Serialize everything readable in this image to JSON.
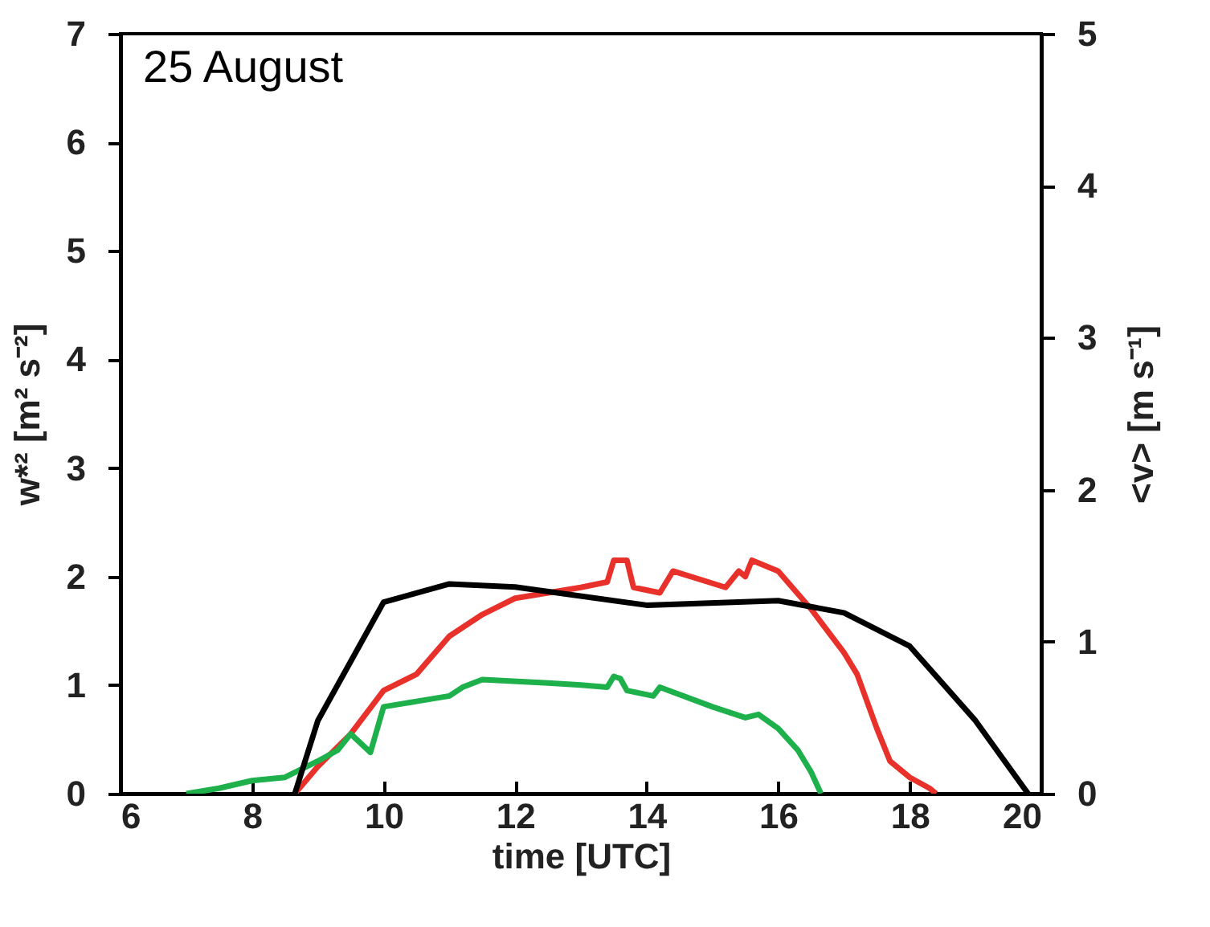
{
  "chart_data": {
    "type": "line",
    "annotations": [
      "25 August"
    ],
    "xlabel": "time [UTC]",
    "ylabel": "w*² [m² s⁻²]",
    "y2label": "<v> [m s⁻¹]",
    "xlim": [
      6,
      20
    ],
    "xticks": [
      6,
      8,
      10,
      12,
      14,
      16,
      18,
      20
    ],
    "ylim": [
      0,
      7
    ],
    "yticks": [
      0,
      1,
      2,
      3,
      4,
      5,
      6,
      7
    ],
    "y2lim": [
      0,
      5
    ],
    "y2ticks": [
      0,
      1,
      2,
      3,
      4,
      5
    ],
    "grid": false,
    "legend": false,
    "line_style": "solid",
    "series": [
      {
        "color": "#e8312a",
        "x": [
          8.65,
          9.0,
          9.5,
          10,
          10.5,
          11,
          11.5,
          12,
          13,
          13.4,
          13.5,
          13.7,
          13.8,
          14.2,
          14.4,
          15.2,
          15.4,
          15.5,
          15.6,
          16,
          16.5,
          17,
          17.2,
          17.5,
          17.7,
          18,
          18.3,
          18.4
        ],
        "values": [
          0,
          0.25,
          0.55,
          0.95,
          1.1,
          1.45,
          1.65,
          1.8,
          1.9,
          1.95,
          2.15,
          2.15,
          1.9,
          1.85,
          2.05,
          1.9,
          2.05,
          2.0,
          2.15,
          2.05,
          1.7,
          1.3,
          1.1,
          0.6,
          0.3,
          0.15,
          0.05,
          0
        ]
      },
      {
        "color": "#1db04b",
        "x": [
          7,
          7.5,
          8,
          8.5,
          9,
          9.3,
          9.5,
          9.8,
          10,
          10.5,
          11,
          11.2,
          11.5,
          12.5,
          13,
          13.4,
          13.5,
          13.6,
          13.7,
          14.1,
          14.2,
          15,
          15.5,
          15.7,
          16,
          16.3,
          16.5,
          16.65
        ],
        "values": [
          0,
          0.05,
          0.12,
          0.15,
          0.3,
          0.4,
          0.55,
          0.38,
          0.8,
          0.85,
          0.9,
          0.98,
          1.05,
          1.02,
          1.0,
          0.98,
          1.08,
          1.06,
          0.95,
          0.9,
          0.98,
          0.8,
          0.7,
          0.73,
          0.6,
          0.4,
          0.2,
          0
        ]
      },
      {
        "color": "#000000",
        "axis": "y2",
        "x": [
          8.65,
          9.0,
          10,
          11,
          12,
          14,
          16,
          17,
          18,
          19,
          19.8
        ],
        "values": [
          0,
          0.48,
          1.26,
          1.38,
          1.36,
          1.24,
          1.27,
          1.19,
          0.97,
          0.48,
          0
        ]
      }
    ]
  }
}
